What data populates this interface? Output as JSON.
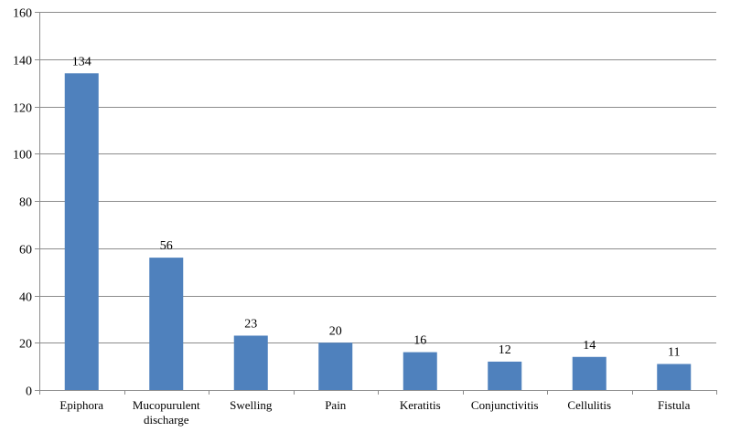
{
  "chart_data": {
    "type": "bar",
    "categories": [
      [
        "Epiphora"
      ],
      [
        "Mucopurulent",
        "discharge"
      ],
      [
        "Swelling"
      ],
      [
        "Pain"
      ],
      [
        "Keratitis"
      ],
      [
        "Conjunctivitis"
      ],
      [
        "Cellulitis"
      ],
      [
        "Fistula"
      ]
    ],
    "values": [
      134,
      56,
      23,
      20,
      16,
      12,
      14,
      11
    ],
    "data_labels": [
      "134",
      "56",
      "23",
      "20",
      "16",
      "12",
      "14",
      "11"
    ],
    "y_ticks": [
      0,
      20,
      40,
      60,
      80,
      100,
      120,
      140,
      160
    ],
    "ylim": [
      0,
      160
    ],
    "title": "",
    "xlabel": "",
    "ylabel": "",
    "grid": true,
    "legend": "none",
    "bar_color": "#4f81bd"
  }
}
